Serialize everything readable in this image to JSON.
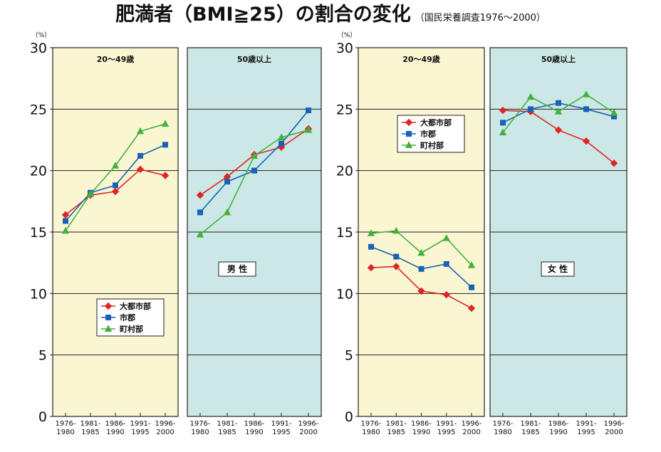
{
  "title": {
    "main": "肥満者（BMI≧25）の割合の変化",
    "sub": "（国民栄養調査1976～2000）"
  },
  "colors": {
    "panel_young": "#fbf6d2",
    "panel_old": "#cbe8e6",
    "series": {
      "大都市部": "#e02525",
      "市郡": "#1a62b4",
      "町村部": "#43b23c"
    }
  },
  "chart_data": [
    {
      "type": "line",
      "group": "男 性",
      "yunit": "（%）",
      "ylim": [
        0,
        30
      ],
      "yticks": [
        "0",
        "5",
        "10",
        "15",
        "20",
        "25",
        "30"
      ],
      "categories": [
        [
          "1976-",
          "1980"
        ],
        [
          "1981-",
          "1985"
        ],
        [
          "1986-",
          "1990"
        ],
        [
          "1991-",
          "1995"
        ],
        [
          "1996-",
          "2000"
        ]
      ],
      "legend": {
        "placement": "left panel, lower center",
        "entries": [
          "大都市部",
          "市郡",
          "町村部"
        ]
      },
      "panels": [
        {
          "label": "20～49歳",
          "series": [
            {
              "name": "大都市部",
              "marker": "diamond",
              "values": [
                16.4,
                18.0,
                18.3,
                20.1,
                19.6
              ]
            },
            {
              "name": "市郡",
              "marker": "square",
              "values": [
                15.9,
                18.2,
                18.8,
                21.2,
                22.1
              ]
            },
            {
              "name": "町村部",
              "marker": "triangle",
              "values": [
                15.1,
                18.1,
                20.4,
                23.2,
                23.8
              ]
            }
          ]
        },
        {
          "label": "50歳以上",
          "series": [
            {
              "name": "大都市部",
              "marker": "diamond",
              "values": [
                18.0,
                19.5,
                21.3,
                21.9,
                23.4
              ]
            },
            {
              "name": "市郡",
              "marker": "square",
              "values": [
                16.6,
                19.1,
                20.0,
                22.2,
                24.9
              ]
            },
            {
              "name": "町村部",
              "marker": "triangle",
              "values": [
                14.8,
                16.6,
                21.2,
                22.7,
                23.3
              ]
            }
          ]
        }
      ]
    },
    {
      "type": "line",
      "group": "女 性",
      "yunit": "（%）",
      "ylim": [
        0,
        30
      ],
      "yticks": [
        "0",
        "5",
        "10",
        "15",
        "20",
        "25",
        "30"
      ],
      "categories": [
        [
          "1976-",
          "1980"
        ],
        [
          "1981-",
          "1985"
        ],
        [
          "1986-",
          "1990"
        ],
        [
          "1991-",
          "1995"
        ],
        [
          "1996-",
          "2000"
        ]
      ],
      "legend": {
        "placement": "left panel, upper center",
        "entries": [
          "大都市部",
          "市郡",
          "町村部"
        ]
      },
      "panels": [
        {
          "label": "20～49歳",
          "series": [
            {
              "name": "大都市部",
              "marker": "diamond",
              "values": [
                12.1,
                12.2,
                10.2,
                9.9,
                8.8
              ]
            },
            {
              "name": "市郡",
              "marker": "square",
              "values": [
                13.8,
                13.0,
                12.0,
                12.4,
                10.5
              ]
            },
            {
              "name": "町村部",
              "marker": "triangle",
              "values": [
                14.9,
                15.1,
                13.3,
                14.5,
                12.3
              ]
            }
          ]
        },
        {
          "label": "50歳以上",
          "series": [
            {
              "name": "大都市部",
              "marker": "diamond",
              "values": [
                24.9,
                24.8,
                23.3,
                22.4,
                20.6
              ]
            },
            {
              "name": "市郡",
              "marker": "square",
              "values": [
                23.9,
                25.0,
                25.5,
                25.0,
                24.4
              ]
            },
            {
              "name": "町村部",
              "marker": "triangle",
              "values": [
                23.1,
                26.0,
                24.8,
                26.2,
                24.7
              ]
            }
          ]
        }
      ]
    }
  ]
}
